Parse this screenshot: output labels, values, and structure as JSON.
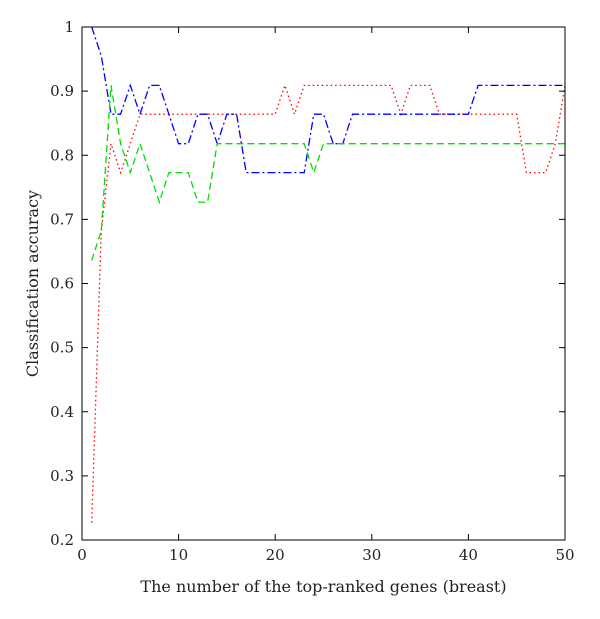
{
  "chart_data": {
    "type": "line",
    "title": "",
    "xlabel": "The number of the top-ranked genes (breast)",
    "ylabel": "Classification accuracy",
    "xlim": [
      0,
      50
    ],
    "ylim": [
      0.2,
      1.0
    ],
    "xticks": [
      0,
      10,
      20,
      30,
      40,
      50
    ],
    "yticks": [
      0.2,
      0.3,
      0.4,
      0.5,
      0.6,
      0.7,
      0.8,
      0.9,
      1.0
    ],
    "grid": false,
    "legend": "none",
    "series": [
      {
        "color": "#ff0000",
        "style": "dotted",
        "x": [
          1,
          2,
          3,
          4,
          5,
          6,
          7,
          8,
          9,
          10,
          11,
          12,
          13,
          14,
          15,
          16,
          17,
          18,
          19,
          20,
          21,
          22,
          23,
          24,
          25,
          26,
          27,
          28,
          29,
          30,
          31,
          32,
          33,
          34,
          35,
          36,
          37,
          38,
          39,
          40,
          41,
          42,
          43,
          44,
          45,
          46,
          47,
          48,
          49,
          50
        ],
        "y": [
          0.227,
          0.682,
          0.818,
          0.773,
          0.818,
          0.864,
          0.864,
          0.864,
          0.864,
          0.864,
          0.864,
          0.864,
          0.864,
          0.864,
          0.864,
          0.864,
          0.864,
          0.864,
          0.864,
          0.864,
          0.909,
          0.864,
          0.909,
          0.909,
          0.909,
          0.909,
          0.909,
          0.909,
          0.909,
          0.909,
          0.909,
          0.909,
          0.864,
          0.909,
          0.909,
          0.909,
          0.864,
          0.864,
          0.864,
          0.864,
          0.864,
          0.864,
          0.864,
          0.864,
          0.864,
          0.773,
          0.773,
          0.773,
          0.818,
          0.909
        ]
      },
      {
        "color": "#0000ff",
        "style": "dashdot",
        "x": [
          1,
          2,
          3,
          4,
          5,
          6,
          7,
          8,
          9,
          10,
          11,
          12,
          13,
          14,
          15,
          16,
          17,
          18,
          19,
          20,
          21,
          22,
          23,
          24,
          25,
          26,
          27,
          28,
          29,
          30,
          31,
          32,
          33,
          34,
          35,
          36,
          37,
          38,
          39,
          40,
          41,
          42,
          43,
          44,
          45,
          46,
          47,
          48,
          49,
          50
        ],
        "y": [
          1.0,
          0.955,
          0.864,
          0.864,
          0.909,
          0.864,
          0.909,
          0.909,
          0.864,
          0.818,
          0.818,
          0.864,
          0.864,
          0.818,
          0.864,
          0.864,
          0.773,
          0.773,
          0.773,
          0.773,
          0.773,
          0.773,
          0.773,
          0.864,
          0.864,
          0.818,
          0.818,
          0.864,
          0.864,
          0.864,
          0.864,
          0.864,
          0.864,
          0.864,
          0.864,
          0.864,
          0.864,
          0.864,
          0.864,
          0.864,
          0.909,
          0.909,
          0.909,
          0.909,
          0.909,
          0.909,
          0.909,
          0.909,
          0.909,
          0.909
        ]
      },
      {
        "color": "#00dd00",
        "style": "dashed",
        "x": [
          1,
          2,
          3,
          4,
          5,
          6,
          7,
          8,
          9,
          10,
          11,
          12,
          13,
          14,
          15,
          16,
          17,
          18,
          19,
          20,
          21,
          22,
          23,
          24,
          25,
          26,
          27,
          28,
          29,
          30,
          31,
          32,
          33,
          34,
          35,
          36,
          37,
          38,
          39,
          40,
          41,
          42,
          43,
          44,
          45,
          46,
          47,
          48,
          49,
          50
        ],
        "y": [
          0.636,
          0.682,
          0.909,
          0.818,
          0.773,
          0.818,
          0.773,
          0.727,
          0.773,
          0.773,
          0.773,
          0.727,
          0.727,
          0.818,
          0.818,
          0.818,
          0.818,
          0.818,
          0.818,
          0.818,
          0.818,
          0.818,
          0.818,
          0.773,
          0.818,
          0.818,
          0.818,
          0.818,
          0.818,
          0.818,
          0.818,
          0.818,
          0.818,
          0.818,
          0.818,
          0.818,
          0.818,
          0.818,
          0.818,
          0.818,
          0.818,
          0.818,
          0.818,
          0.818,
          0.818,
          0.818,
          0.818,
          0.818,
          0.818,
          0.818
        ]
      }
    ]
  }
}
